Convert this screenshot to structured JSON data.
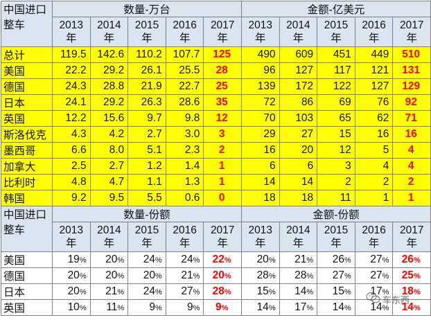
{
  "header_label": [
    "中国进口",
    "整车"
  ],
  "block1": {
    "left_title": "数量-万台",
    "right_title": "金额-亿美元",
    "years": [
      "2013",
      "2014",
      "2015",
      "2016",
      "2017"
    ],
    "year_suffix": "年",
    "rows": [
      {
        "name": "总计",
        "qty": [
          "119.5",
          "142.6",
          "110.2",
          "107.7",
          "125"
        ],
        "amt": [
          "490",
          "609",
          "451",
          "449",
          "510"
        ]
      },
      {
        "name": "美国",
        "qty": [
          "22.2",
          "29.2",
          "26.1",
          "25.5",
          "28"
        ],
        "amt": [
          "96",
          "127",
          "117",
          "121",
          "131"
        ]
      },
      {
        "name": "德国",
        "qty": [
          "24.3",
          "28.8",
          "21.9",
          "22.7",
          "25"
        ],
        "amt": [
          "139",
          "172",
          "122",
          "127",
          "129"
        ]
      },
      {
        "name": "日本",
        "qty": [
          "24.1",
          "29.2",
          "26.3",
          "28.6",
          "35"
        ],
        "amt": [
          "72",
          "86",
          "69",
          "76",
          "92"
        ]
      },
      {
        "name": "英国",
        "qty": [
          "12.2",
          "15.6",
          "9.7",
          "9.8",
          "12"
        ],
        "amt": [
          "70",
          "103",
          "65",
          "62",
          "71"
        ]
      },
      {
        "name": "斯洛伐克",
        "qty": [
          "4.3",
          "4.2",
          "2.7",
          "3.0",
          "3"
        ],
        "amt": [
          "29",
          "27",
          "15",
          "16",
          "16"
        ]
      },
      {
        "name": "墨西哥",
        "qty": [
          "6.6",
          "8.0",
          "5.1",
          "2.3",
          "2"
        ],
        "amt": [
          "16",
          "20",
          "12",
          "5",
          "4"
        ]
      },
      {
        "name": "加拿大",
        "qty": [
          "2.5",
          "2.7",
          "1.2",
          "1.4",
          "1"
        ],
        "amt": [
          "6",
          "6",
          "3",
          "4",
          "4"
        ]
      },
      {
        "name": "比利时",
        "qty": [
          "4.8",
          "4.7",
          "1.1",
          "1.3",
          "1"
        ],
        "amt": [
          "14",
          "14",
          "2",
          "2",
          "2"
        ]
      },
      {
        "name": "韩国",
        "qty": [
          "9.2",
          "9.5",
          "5.5",
          "0.6",
          "0"
        ],
        "amt": [
          "18",
          "18",
          "11",
          "1",
          "1"
        ]
      }
    ]
  },
  "block2": {
    "left_title": "数量-份额",
    "right_title": "金额-份额",
    "years": [
      "2013",
      "2014",
      "2015",
      "2016",
      "2017"
    ],
    "year_suffix": "年",
    "pct_sign": "%",
    "rows": [
      {
        "name": "美国",
        "qty": [
          "19",
          "20",
          "24",
          "24",
          "22"
        ],
        "amt": [
          "20",
          "21",
          "26",
          "27",
          "26"
        ]
      },
      {
        "name": "德国",
        "qty": [
          "20",
          "20",
          "20",
          "21",
          "20"
        ],
        "amt": [
          "28",
          "28",
          "27",
          "27",
          "25"
        ]
      },
      {
        "name": "日本",
        "qty": [
          "20",
          "21",
          "24",
          "27",
          "28"
        ],
        "amt": [
          "15",
          "14",
          "15",
          "17",
          "18"
        ]
      },
      {
        "name": "英国",
        "qty": [
          "10",
          "11",
          "9",
          "9",
          "9"
        ],
        "amt": [
          "14",
          "17",
          "14",
          "14",
          "14"
        ]
      }
    ]
  },
  "watermark": {
    "text": "车东西",
    "icon": "wechat-icon"
  },
  "colors": {
    "highlight_row": "#ffff00",
    "header_bg": "#dbe5f1",
    "highlight_text": "#ff0000"
  }
}
